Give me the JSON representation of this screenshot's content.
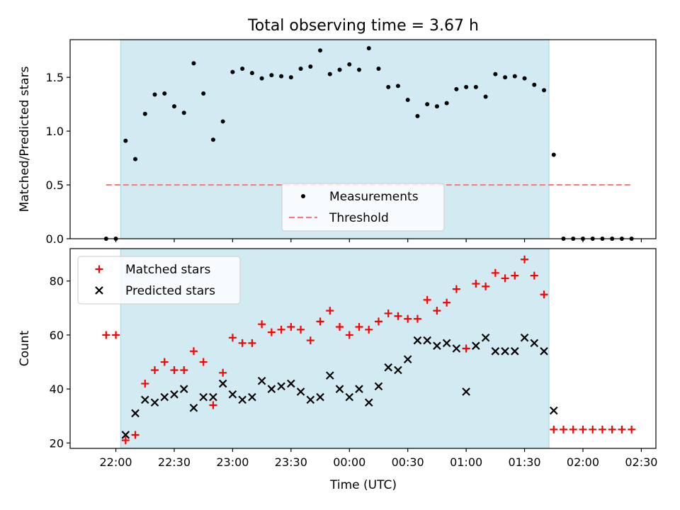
{
  "figure": {
    "title": "Total observing time = 3.67 h",
    "xlabel": "Time (UTC)"
  },
  "chart_data": [
    {
      "type": "scatter",
      "title": "Total observing time = 3.67 h",
      "xlabel": "",
      "ylabel": "Matched/Predicted stars",
      "x_unit": "minutes after 22:00 UTC",
      "xlim": [
        -23.5,
        277.5
      ],
      "ylim": [
        0,
        1.85
      ],
      "yticks": [
        0.0,
        0.5,
        1.0,
        1.5
      ],
      "ytick_labels": [
        "0.0",
        "0.5",
        "1.0",
        "1.5"
      ],
      "shaded_region": [
        2.5,
        222.5
      ],
      "shaded_color": "#add8e6",
      "legend_position": "lower center",
      "legend": [
        "Measurements",
        "Threshold"
      ],
      "series": [
        {
          "name": "Measurements",
          "marker": "dot",
          "color": "#000000",
          "x": [
            -5,
            0,
            5,
            10,
            15,
            20,
            25,
            30,
            35,
            40,
            45,
            50,
            55,
            60,
            65,
            70,
            75,
            80,
            85,
            90,
            95,
            100,
            105,
            110,
            115,
            120,
            125,
            130,
            135,
            140,
            145,
            150,
            155,
            160,
            165,
            170,
            175,
            180,
            185,
            190,
            195,
            200,
            205,
            210,
            215,
            220,
            225,
            230,
            235,
            240,
            245,
            250,
            255,
            260,
            265
          ],
          "y": [
            0,
            0,
            0.91,
            0.74,
            1.16,
            1.34,
            1.35,
            1.23,
            1.17,
            1.63,
            1.35,
            0.92,
            1.09,
            1.55,
            1.58,
            1.54,
            1.49,
            1.52,
            1.51,
            1.5,
            1.58,
            1.6,
            1.75,
            1.53,
            1.57,
            1.62,
            1.57,
            1.77,
            1.58,
            1.41,
            1.42,
            1.29,
            1.14,
            1.25,
            1.23,
            1.26,
            1.39,
            1.41,
            1.41,
            1.32,
            1.53,
            1.5,
            1.51,
            1.49,
            1.43,
            1.38,
            0.78,
            0,
            0,
            0,
            0,
            0,
            0,
            0,
            0
          ]
        },
        {
          "name": "Threshold",
          "marker": "dashed-line",
          "color": "#f08080",
          "x": [
            -5,
            265
          ],
          "y": [
            0.5,
            0.5
          ]
        }
      ]
    },
    {
      "type": "scatter",
      "xlabel": "Time (UTC)",
      "ylabel": "Count",
      "x_unit": "minutes after 22:00 UTC",
      "xlim": [
        -23.5,
        277.5
      ],
      "ylim": [
        18,
        92
      ],
      "yticks": [
        20,
        40,
        60,
        80
      ],
      "ytick_labels": [
        "20",
        "40",
        "60",
        "80"
      ],
      "xticks": [
        0,
        30,
        60,
        90,
        120,
        150,
        180,
        210,
        240,
        270
      ],
      "xtick_labels": [
        "22:00",
        "22:30",
        "23:00",
        "23:30",
        "00:00",
        "00:30",
        "01:00",
        "01:30",
        "02:00",
        "02:30"
      ],
      "shaded_region": [
        2.5,
        222.5
      ],
      "shaded_color": "#add8e6",
      "legend_position": "upper left",
      "legend": [
        "Matched stars",
        "Predicted stars"
      ],
      "series": [
        {
          "name": "Matched stars",
          "marker": "plus",
          "color": "#ff0000",
          "x": [
            -5,
            0,
            5,
            10,
            15,
            20,
            25,
            30,
            35,
            40,
            45,
            50,
            55,
            60,
            65,
            70,
            75,
            80,
            85,
            90,
            95,
            100,
            105,
            110,
            115,
            120,
            125,
            130,
            135,
            140,
            145,
            150,
            155,
            160,
            165,
            170,
            175,
            180,
            185,
            190,
            195,
            200,
            205,
            210,
            215,
            220,
            225,
            230,
            235,
            240,
            245,
            250,
            255,
            260,
            265
          ],
          "y": [
            60,
            60,
            21,
            23,
            42,
            47,
            50,
            47,
            47,
            54,
            50,
            34,
            46,
            59,
            57,
            57,
            64,
            61,
            62,
            63,
            62,
            58,
            65,
            69,
            63,
            60,
            63,
            62,
            65,
            68,
            67,
            66,
            66,
            73,
            69,
            72,
            77,
            55,
            79,
            78,
            83,
            81,
            82,
            88,
            82,
            75,
            25,
            25,
            25,
            25,
            25,
            25,
            25,
            25,
            25
          ]
        },
        {
          "name": "Predicted stars",
          "marker": "x",
          "color": "#000000",
          "x": [
            5,
            10,
            15,
            20,
            25,
            30,
            35,
            40,
            45,
            50,
            55,
            60,
            65,
            70,
            75,
            80,
            85,
            90,
            95,
            100,
            105,
            110,
            115,
            120,
            125,
            130,
            135,
            140,
            145,
            150,
            155,
            160,
            165,
            170,
            175,
            180,
            185,
            190,
            195,
            200,
            205,
            210,
            215,
            220,
            225
          ],
          "y": [
            23,
            31,
            36,
            35,
            37,
            38,
            40,
            33,
            37,
            37,
            42,
            38,
            36,
            37,
            43,
            40,
            41,
            42,
            39,
            36,
            37,
            45,
            40,
            37,
            40,
            35,
            41,
            48,
            47,
            51,
            58,
            58,
            56,
            57,
            55,
            39,
            56,
            59,
            54,
            54,
            54,
            59,
            57,
            54,
            32
          ]
        }
      ]
    }
  ]
}
